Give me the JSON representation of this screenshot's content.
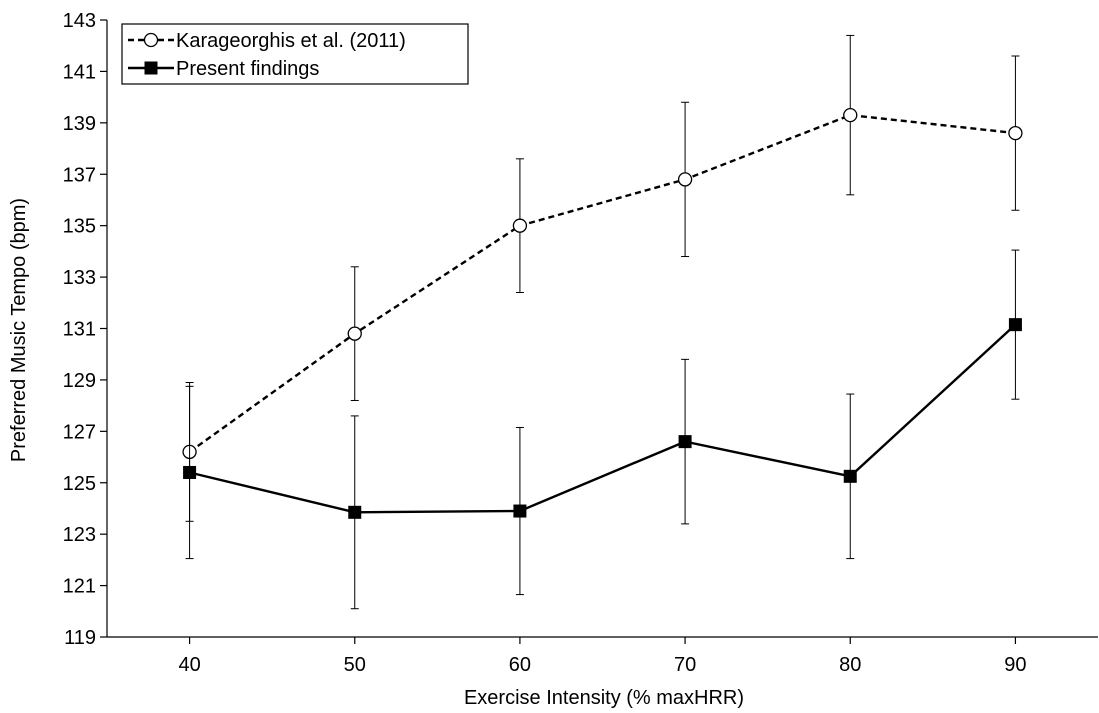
{
  "chart_data": {
    "type": "line",
    "title": "",
    "xlabel": "Exercise Intensity (% maxHRR)",
    "ylabel": "Preferred Music Tempo (bpm)",
    "x": [
      40,
      50,
      60,
      70,
      80,
      90
    ],
    "x_tick_labels": [
      "40",
      "50",
      "60",
      "70",
      "80",
      "90"
    ],
    "xlim": [
      35,
      95
    ],
    "ylim": [
      119,
      143
    ],
    "y_ticks": [
      119,
      121,
      123,
      125,
      127,
      129,
      131,
      133,
      135,
      137,
      139,
      141,
      143
    ],
    "grid": false,
    "legend_position": "top-left",
    "series": [
      {
        "name": "Karageorghis et al. (2011)",
        "values": [
          126.2,
          130.8,
          135.0,
          136.8,
          139.3,
          138.6
        ],
        "error": [
          2.7,
          2.6,
          2.6,
          3.0,
          3.1,
          3.0
        ],
        "line_style": "dashed",
        "marker": "open-circle",
        "color": "#000000"
      },
      {
        "name": "Present findings",
        "values": [
          125.4,
          123.85,
          123.9,
          126.6,
          125.25,
          131.15
        ],
        "error": [
          3.35,
          3.75,
          3.25,
          3.2,
          3.2,
          2.9
        ],
        "line_style": "solid",
        "marker": "filled-square",
        "color": "#000000"
      }
    ]
  }
}
